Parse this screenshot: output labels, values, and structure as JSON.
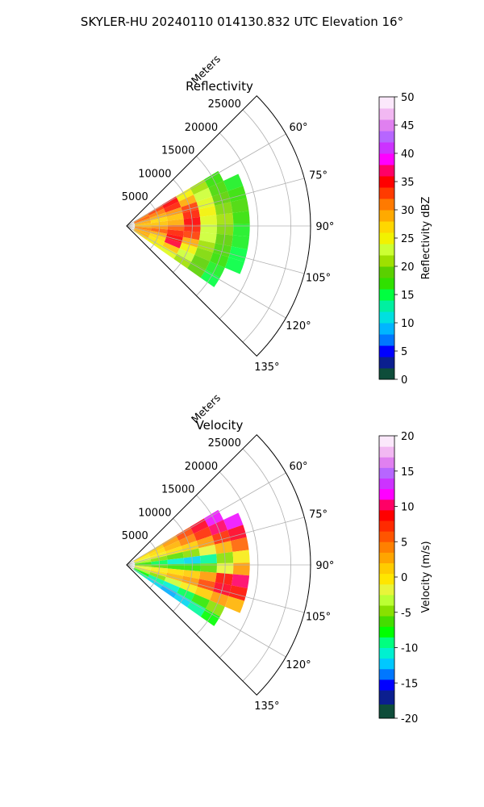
{
  "figure": {
    "suptitle": "SKYLER-HU  20240110  014130.832 UTC Elevation 16°"
  },
  "chart_data": [
    {
      "type": "heatmap",
      "projection": "polar-sector",
      "title": "Reflectivity",
      "radial_label": "Meters",
      "radial_ticks": [
        5000,
        10000,
        15000,
        20000,
        25000
      ],
      "radial_range": [
        0,
        28000
      ],
      "angle_ticks": [
        60,
        75,
        90,
        105,
        120,
        135
      ],
      "angle_tick_labels": [
        "60°",
        "75°",
        "90°",
        "105°",
        "120°",
        "135°"
      ],
      "angle_range": [
        45,
        135
      ],
      "grid": true,
      "colorbar": {
        "label": "Reflectivity dBZ",
        "range": [
          0,
          50
        ],
        "ticks": [
          0,
          5,
          10,
          15,
          20,
          25,
          30,
          35,
          40,
          45,
          50
        ],
        "position": "right"
      },
      "colormap": [
        {
          "v": 0,
          "c": "#0a1a4a"
        },
        {
          "v": 2,
          "c": "#0e4d3a"
        },
        {
          "v": 4,
          "c": "#0b1f8f"
        },
        {
          "v": 6,
          "c": "#0000ff"
        },
        {
          "v": 8,
          "c": "#0077ff"
        },
        {
          "v": 10,
          "c": "#00b5ff"
        },
        {
          "v": 12,
          "c": "#00e0e0"
        },
        {
          "v": 14,
          "c": "#00f0a0"
        },
        {
          "v": 16,
          "c": "#00ff40"
        },
        {
          "v": 18,
          "c": "#30e000"
        },
        {
          "v": 20,
          "c": "#5ad000"
        },
        {
          "v": 22,
          "c": "#9ee000"
        },
        {
          "v": 24,
          "c": "#ccff33"
        },
        {
          "v": 26,
          "c": "#f2f200"
        },
        {
          "v": 28,
          "c": "#ffd700"
        },
        {
          "v": 30,
          "c": "#ffaa00"
        },
        {
          "v": 32,
          "c": "#ff7a00"
        },
        {
          "v": 34,
          "c": "#ff3b00"
        },
        {
          "v": 36,
          "c": "#ff0000"
        },
        {
          "v": 38,
          "c": "#ff0066"
        },
        {
          "v": 40,
          "c": "#ff00ff"
        },
        {
          "v": 42,
          "c": "#cc33ff"
        },
        {
          "v": 44,
          "c": "#b766ff"
        },
        {
          "v": 46,
          "c": "#e080f0"
        },
        {
          "v": 48,
          "c": "#f2b8f2"
        },
        {
          "v": 50,
          "c": "#fbe8fb"
        }
      ],
      "field_cells": [
        {
          "r": 2500,
          "a": 62,
          "v": 32
        },
        {
          "r": 2500,
          "a": 68,
          "v": 33
        },
        {
          "r": 2500,
          "a": 74,
          "v": 31
        },
        {
          "r": 2500,
          "a": 80,
          "v": 30
        },
        {
          "r": 2500,
          "a": 86,
          "v": 29
        },
        {
          "r": 2500,
          "a": 92,
          "v": 30
        },
        {
          "r": 2500,
          "a": 98,
          "v": 32
        },
        {
          "r": 2500,
          "a": 104,
          "v": 31
        },
        {
          "r": 2500,
          "a": 110,
          "v": 30
        },
        {
          "r": 2500,
          "a": 116,
          "v": 30
        },
        {
          "r": 2500,
          "a": 122,
          "v": 28
        },
        {
          "r": 5000,
          "a": 62,
          "v": 34
        },
        {
          "r": 5000,
          "a": 68,
          "v": 32
        },
        {
          "r": 5000,
          "a": 74,
          "v": 30
        },
        {
          "r": 5000,
          "a": 80,
          "v": 28
        },
        {
          "r": 5000,
          "a": 86,
          "v": 29
        },
        {
          "r": 5000,
          "a": 92,
          "v": 31
        },
        {
          "r": 5000,
          "a": 98,
          "v": 33
        },
        {
          "r": 5000,
          "a": 104,
          "v": 30
        },
        {
          "r": 5000,
          "a": 110,
          "v": 28
        },
        {
          "r": 5000,
          "a": 116,
          "v": 27
        },
        {
          "r": 5000,
          "a": 122,
          "v": 26
        },
        {
          "r": 7500,
          "a": 62,
          "v": 36
        },
        {
          "r": 7500,
          "a": 68,
          "v": 35
        },
        {
          "r": 7500,
          "a": 74,
          "v": 31
        },
        {
          "r": 7500,
          "a": 80,
          "v": 29
        },
        {
          "r": 7500,
          "a": 86,
          "v": 30
        },
        {
          "r": 7500,
          "a": 92,
          "v": 33
        },
        {
          "r": 7500,
          "a": 98,
          "v": 35
        },
        {
          "r": 7500,
          "a": 104,
          "v": 36
        },
        {
          "r": 7500,
          "a": 110,
          "v": 37
        },
        {
          "r": 7500,
          "a": 116,
          "v": 29
        },
        {
          "r": 7500,
          "a": 122,
          "v": 25
        },
        {
          "r": 10000,
          "a": 62,
          "v": 26
        },
        {
          "r": 10000,
          "a": 68,
          "v": 30
        },
        {
          "r": 10000,
          "a": 74,
          "v": 34
        },
        {
          "r": 10000,
          "a": 80,
          "v": 35
        },
        {
          "r": 10000,
          "a": 86,
          "v": 36
        },
        {
          "r": 10000,
          "a": 92,
          "v": 35
        },
        {
          "r": 10000,
          "a": 98,
          "v": 34
        },
        {
          "r": 10000,
          "a": 104,
          "v": 30
        },
        {
          "r": 10000,
          "a": 110,
          "v": 26
        },
        {
          "r": 10000,
          "a": 116,
          "v": 24
        },
        {
          "r": 10000,
          "a": 122,
          "v": 22
        },
        {
          "r": 12500,
          "a": 62,
          "v": 22
        },
        {
          "r": 12500,
          "a": 68,
          "v": 24
        },
        {
          "r": 12500,
          "a": 74,
          "v": 25
        },
        {
          "r": 12500,
          "a": 80,
          "v": 26
        },
        {
          "r": 12500,
          "a": 86,
          "v": 25
        },
        {
          "r": 12500,
          "a": 92,
          "v": 24
        },
        {
          "r": 12500,
          "a": 98,
          "v": 24
        },
        {
          "r": 12500,
          "a": 104,
          "v": 22
        },
        {
          "r": 12500,
          "a": 110,
          "v": 21
        },
        {
          "r": 12500,
          "a": 116,
          "v": 20
        },
        {
          "r": 12500,
          "a": 122,
          "v": 20
        },
        {
          "r": 15000,
          "a": 62,
          "v": 18
        },
        {
          "r": 15000,
          "a": 68,
          "v": 19
        },
        {
          "r": 15000,
          "a": 74,
          "v": 20
        },
        {
          "r": 15000,
          "a": 80,
          "v": 21
        },
        {
          "r": 15000,
          "a": 86,
          "v": 22
        },
        {
          "r": 15000,
          "a": 92,
          "v": 21
        },
        {
          "r": 15000,
          "a": 98,
          "v": 20
        },
        {
          "r": 15000,
          "a": 104,
          "v": 19
        },
        {
          "r": 15000,
          "a": 110,
          "v": 18
        },
        {
          "r": 15000,
          "a": 116,
          "v": 17
        },
        {
          "r": 15000,
          "a": 122,
          "v": 16
        },
        {
          "r": 17500,
          "a": 68,
          "v": 17
        },
        {
          "r": 17500,
          "a": 74,
          "v": 18
        },
        {
          "r": 17500,
          "a": 80,
          "v": 19
        },
        {
          "r": 17500,
          "a": 86,
          "v": 18
        },
        {
          "r": 17500,
          "a": 92,
          "v": 17
        },
        {
          "r": 17500,
          "a": 98,
          "v": 17
        },
        {
          "r": 17500,
          "a": 104,
          "v": 16
        },
        {
          "r": 17500,
          "a": 110,
          "v": 16
        }
      ]
    },
    {
      "type": "heatmap",
      "projection": "polar-sector",
      "title": "Velocity",
      "radial_label": "Meters",
      "radial_ticks": [
        5000,
        10000,
        15000,
        20000,
        25000
      ],
      "radial_range": [
        0,
        28000
      ],
      "angle_ticks": [
        60,
        75,
        90,
        105,
        120,
        135
      ],
      "angle_tick_labels": [
        "60°",
        "75°",
        "90°",
        "105°",
        "120°",
        "135°"
      ],
      "angle_range": [
        45,
        135
      ],
      "grid": true,
      "colorbar": {
        "label": "Velocity (m/s)",
        "range": [
          -20,
          20
        ],
        "ticks": [
          -20,
          -15,
          -10,
          -5,
          0,
          5,
          10,
          15,
          20
        ],
        "position": "right"
      },
      "colormap": [
        {
          "v": -20,
          "c": "#0a1a4a"
        },
        {
          "v": -18,
          "c": "#0e4d3a"
        },
        {
          "v": -16,
          "c": "#0b1f8f"
        },
        {
          "v": -14.5,
          "c": "#0000ff"
        },
        {
          "v": -13,
          "c": "#0077ff"
        },
        {
          "v": -11.5,
          "c": "#00c8ff"
        },
        {
          "v": -10,
          "c": "#00f0d0"
        },
        {
          "v": -8.5,
          "c": "#00ff80"
        },
        {
          "v": -7,
          "c": "#00ff00"
        },
        {
          "v": -5.5,
          "c": "#44dd00"
        },
        {
          "v": -4,
          "c": "#88e000"
        },
        {
          "v": -2.5,
          "c": "#bbff33"
        },
        {
          "v": -1,
          "c": "#e8f53a"
        },
        {
          "v": 0.5,
          "c": "#ffe600"
        },
        {
          "v": 2,
          "c": "#ffcc00"
        },
        {
          "v": 3.5,
          "c": "#ffa500"
        },
        {
          "v": 5,
          "c": "#ff8000"
        },
        {
          "v": 6.5,
          "c": "#ff5500"
        },
        {
          "v": 8,
          "c": "#ff2a00"
        },
        {
          "v": 9.5,
          "c": "#ff0000"
        },
        {
          "v": 11,
          "c": "#ff0066"
        },
        {
          "v": 12.5,
          "c": "#ff00ff"
        },
        {
          "v": 14,
          "c": "#cc33ff"
        },
        {
          "v": 15.5,
          "c": "#b766ff"
        },
        {
          "v": 17,
          "c": "#e080f0"
        },
        {
          "v": 18.5,
          "c": "#f2b8f2"
        },
        {
          "v": 20,
          "c": "#fbe8fb"
        }
      ],
      "field_cells": [
        {
          "r": 2500,
          "a": 62,
          "v": 1
        },
        {
          "r": 2500,
          "a": 68,
          "v": 0
        },
        {
          "r": 2500,
          "a": 74,
          "v": -1
        },
        {
          "r": 2500,
          "a": 80,
          "v": -3
        },
        {
          "r": 2500,
          "a": 86,
          "v": -6
        },
        {
          "r": 2500,
          "a": 92,
          "v": -4
        },
        {
          "r": 2500,
          "a": 98,
          "v": -1
        },
        {
          "r": 2500,
          "a": 104,
          "v": 0
        },
        {
          "r": 2500,
          "a": 110,
          "v": -3
        },
        {
          "r": 2500,
          "a": 116,
          "v": -7
        },
        {
          "r": 2500,
          "a": 122,
          "v": -9
        },
        {
          "r": 5000,
          "a": 62,
          "v": 2
        },
        {
          "r": 5000,
          "a": 68,
          "v": 1
        },
        {
          "r": 5000,
          "a": 74,
          "v": 0
        },
        {
          "r": 5000,
          "a": 80,
          "v": -4
        },
        {
          "r": 5000,
          "a": 86,
          "v": -8
        },
        {
          "r": 5000,
          "a": 92,
          "v": -5
        },
        {
          "r": 5000,
          "a": 98,
          "v": 0
        },
        {
          "r": 5000,
          "a": 104,
          "v": 1
        },
        {
          "r": 5000,
          "a": 110,
          "v": -4
        },
        {
          "r": 5000,
          "a": 116,
          "v": -9
        },
        {
          "r": 5000,
          "a": 122,
          "v": -11
        },
        {
          "r": 7500,
          "a": 62,
          "v": 4
        },
        {
          "r": 7500,
          "a": 68,
          "v": 3
        },
        {
          "r": 7500,
          "a": 74,
          "v": 1
        },
        {
          "r": 7500,
          "a": 80,
          "v": -5
        },
        {
          "r": 7500,
          "a": 86,
          "v": -10
        },
        {
          "r": 7500,
          "a": 92,
          "v": -6
        },
        {
          "r": 7500,
          "a": 98,
          "v": 1
        },
        {
          "r": 7500,
          "a": 104,
          "v": 3
        },
        {
          "r": 7500,
          "a": 110,
          "v": -2
        },
        {
          "r": 7500,
          "a": 116,
          "v": -10
        },
        {
          "r": 7500,
          "a": 122,
          "v": -12
        },
        {
          "r": 10000,
          "a": 62,
          "v": 7
        },
        {
          "r": 10000,
          "a": 68,
          "v": 5
        },
        {
          "r": 10000,
          "a": 74,
          "v": 2
        },
        {
          "r": 10000,
          "a": 80,
          "v": -4
        },
        {
          "r": 10000,
          "a": 86,
          "v": -11
        },
        {
          "r": 10000,
          "a": 92,
          "v": -6
        },
        {
          "r": 10000,
          "a": 98,
          "v": 2
        },
        {
          "r": 10000,
          "a": 104,
          "v": 4
        },
        {
          "r": 10000,
          "a": 110,
          "v": 0
        },
        {
          "r": 10000,
          "a": 116,
          "v": -8
        },
        {
          "r": 10000,
          "a": 122,
          "v": -11
        },
        {
          "r": 12500,
          "a": 62,
          "v": 10
        },
        {
          "r": 12500,
          "a": 68,
          "v": 8
        },
        {
          "r": 12500,
          "a": 74,
          "v": 4
        },
        {
          "r": 12500,
          "a": 80,
          "v": -1
        },
        {
          "r": 12500,
          "a": 86,
          "v": -9
        },
        {
          "r": 12500,
          "a": 92,
          "v": -5
        },
        {
          "r": 12500,
          "a": 98,
          "v": 4
        },
        {
          "r": 12500,
          "a": 104,
          "v": 7
        },
        {
          "r": 12500,
          "a": 110,
          "v": 2
        },
        {
          "r": 12500,
          "a": 116,
          "v": -6
        },
        {
          "r": 12500,
          "a": 122,
          "v": -9
        },
        {
          "r": 15000,
          "a": 62,
          "v": 13
        },
        {
          "r": 15000,
          "a": 68,
          "v": 11
        },
        {
          "r": 15000,
          "a": 74,
          "v": 8
        },
        {
          "r": 15000,
          "a": 80,
          "v": 3
        },
        {
          "r": 15000,
          "a": 86,
          "v": -4
        },
        {
          "r": 15000,
          "a": 92,
          "v": -1
        },
        {
          "r": 15000,
          "a": 98,
          "v": 9
        },
        {
          "r": 15000,
          "a": 104,
          "v": 10
        },
        {
          "r": 15000,
          "a": 110,
          "v": 4
        },
        {
          "r": 15000,
          "a": 116,
          "v": -4
        },
        {
          "r": 15000,
          "a": 122,
          "v": -7
        },
        {
          "r": 17500,
          "a": 68,
          "v": 13
        },
        {
          "r": 17500,
          "a": 74,
          "v": 10
        },
        {
          "r": 17500,
          "a": 80,
          "v": 6
        },
        {
          "r": 17500,
          "a": 86,
          "v": 0
        },
        {
          "r": 17500,
          "a": 92,
          "v": 4
        },
        {
          "r": 17500,
          "a": 98,
          "v": 11
        },
        {
          "r": 17500,
          "a": 104,
          "v": 9
        },
        {
          "r": 17500,
          "a": 110,
          "v": 3
        }
      ]
    }
  ]
}
